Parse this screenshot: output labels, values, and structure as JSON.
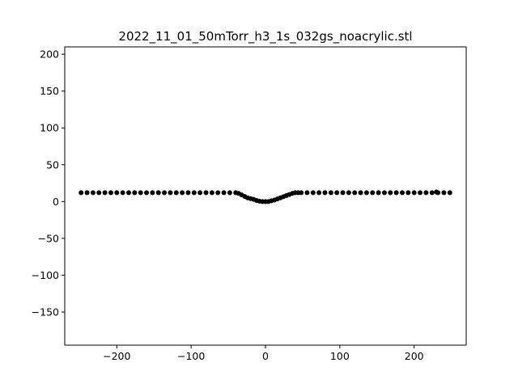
{
  "chart_data": {
    "type": "scatter",
    "title": "2022_11_01_50mTorr_h3_1s_032gs_noacrylic.stl",
    "xlabel": "",
    "ylabel": "",
    "xlim": [
      -270,
      270
    ],
    "ylim": [
      -195,
      210
    ],
    "x_ticks": [
      -200,
      -100,
      0,
      100,
      200
    ],
    "x_tick_labels": [
      "−200",
      "−100",
      "0",
      "100",
      "200"
    ],
    "y_ticks": [
      -150,
      -100,
      -50,
      0,
      50,
      100,
      150,
      200
    ],
    "y_tick_labels": [
      "−150",
      "−100",
      "−50",
      "0",
      "50",
      "100",
      "150",
      "200"
    ],
    "grid": false,
    "legend": false,
    "marker_color": "#000000",
    "series": [
      {
        "x": [
          -248,
          -240,
          -232,
          -224,
          -216,
          -208,
          -200,
          -192,
          -184,
          -176,
          -168,
          -160,
          -152,
          -144,
          -136,
          -128,
          -120,
          -112,
          -104,
          -96,
          -88,
          -80,
          -72,
          -64,
          -56,
          -48,
          -40,
          -36,
          -32,
          -28,
          -24,
          -20,
          -16,
          -12,
          -8,
          -4,
          0,
          4,
          8,
          12,
          16,
          20,
          24,
          28,
          32,
          36,
          40,
          44,
          48,
          56,
          64,
          72,
          80,
          88,
          96,
          104,
          112,
          120,
          128,
          136,
          144,
          152,
          160,
          168,
          176,
          184,
          192,
          200,
          208,
          216,
          224,
          230,
          232,
          240,
          248
        ],
        "y": [
          12,
          12,
          12,
          12,
          12,
          12,
          12,
          12,
          12,
          12,
          12,
          12,
          12,
          12,
          12,
          12,
          12,
          12,
          12,
          12,
          12,
          12,
          12,
          12,
          12,
          12,
          12,
          11,
          9,
          7,
          5,
          4,
          3,
          1.5,
          0.5,
          0,
          0,
          0,
          1,
          2,
          3.5,
          5,
          6.5,
          8,
          9.5,
          11,
          12,
          12,
          12,
          12,
          12,
          12,
          12,
          12,
          12,
          12,
          12,
          12,
          12,
          12,
          12,
          12,
          12,
          12,
          12,
          12,
          12,
          12,
          12,
          12,
          12,
          13,
          12,
          12,
          12
        ]
      }
    ]
  }
}
